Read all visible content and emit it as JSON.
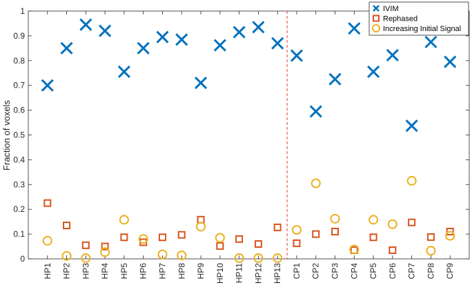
{
  "chart_data": {
    "type": "scatter",
    "title": "",
    "xlabel": "",
    "ylabel": "Fraction of voxels",
    "ylim": [
      0,
      1
    ],
    "yticks": [
      0,
      0.1,
      0.2,
      0.3,
      0.4,
      0.5,
      0.6,
      0.7,
      0.8,
      0.9,
      1
    ],
    "ytick_labels": [
      "0",
      "0.1",
      "0.2",
      "0.3",
      "0.4",
      "0.5",
      "0.6",
      "0.7",
      "0.8",
      "0.9",
      "1"
    ],
    "grid": false,
    "legend_position": "top-right",
    "categories": [
      "HP1",
      "HP2",
      "HP3",
      "HP4",
      "HP5",
      "HP6",
      "HP7",
      "HP8",
      "HP9",
      "HP10",
      "HP11",
      "HP12",
      "HP13",
      "CP1",
      "CP2",
      "CP3",
      "CP4",
      "CP5",
      "CP6",
      "CP7",
      "CP8",
      "CP9"
    ],
    "separator": {
      "between": [
        "HP13",
        "CP1"
      ],
      "style": "dashed",
      "color": "#e8392d"
    },
    "series": [
      {
        "name": "IVIM",
        "marker": "x",
        "color": "#0072bd",
        "values": [
          0.7,
          0.85,
          0.945,
          0.92,
          0.755,
          0.85,
          0.895,
          0.885,
          0.71,
          0.862,
          0.915,
          0.935,
          0.87,
          0.82,
          0.595,
          0.725,
          0.93,
          0.755,
          0.822,
          0.537,
          0.875,
          0.795
        ]
      },
      {
        "name": "Rephased",
        "marker": "square",
        "color": "#d95319",
        "values": [
          0.225,
          0.135,
          0.055,
          0.05,
          0.087,
          0.067,
          0.087,
          0.097,
          0.158,
          0.052,
          0.08,
          0.06,
          0.127,
          0.063,
          0.1,
          0.11,
          0.035,
          0.087,
          0.035,
          0.147,
          0.088,
          0.11
        ]
      },
      {
        "name": "Increasing Initial Signal",
        "marker": "circle",
        "color": "#edb120",
        "values": [
          0.073,
          0.012,
          0.003,
          0.027,
          0.158,
          0.08,
          0.018,
          0.014,
          0.13,
          0.085,
          0.003,
          0.003,
          0.003,
          0.117,
          0.305,
          0.162,
          0.038,
          0.158,
          0.14,
          0.315,
          0.033,
          0.093
        ]
      }
    ]
  }
}
